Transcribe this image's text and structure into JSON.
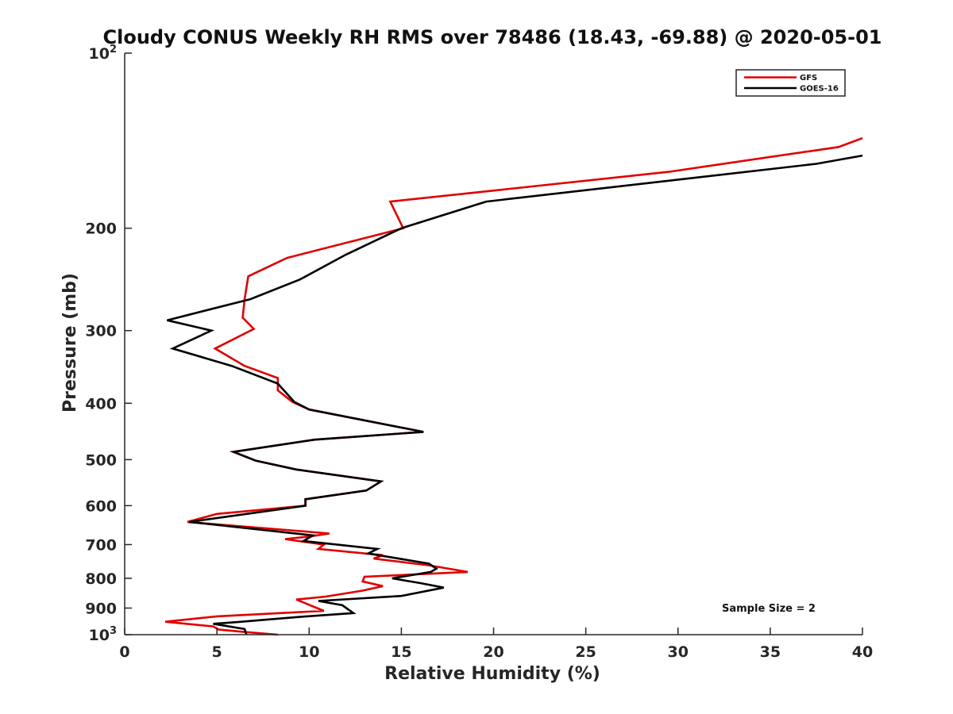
{
  "chart_data": {
    "type": "line",
    "title": "Cloudy CONUS Weekly RH RMS over 78486 (18.43, -69.88) @ 2020-05-01",
    "xlabel": "Relative Humidity (%)",
    "ylabel": "Pressure (mb)",
    "xlim": [
      0,
      40
    ],
    "ylim": [
      100,
      1000
    ],
    "y_scale": "log",
    "y_reversed": true,
    "grid": false,
    "legend_position": "top-right",
    "annotation": "Sample Size = 2",
    "x_ticks": [
      0,
      5,
      10,
      15,
      20,
      25,
      30,
      35,
      40
    ],
    "x_tick_labels": [
      "0",
      "5",
      "10",
      "15",
      "20",
      "25",
      "30",
      "35",
      "40"
    ],
    "y_ticks": [
      {
        "value": 100,
        "base": "10",
        "exp": "2"
      },
      {
        "value": 200,
        "label": "200"
      },
      {
        "value": 300,
        "label": "300"
      },
      {
        "value": 400,
        "label": "400"
      },
      {
        "value": 500,
        "label": "500"
      },
      {
        "value": 600,
        "label": "600"
      },
      {
        "value": 700,
        "label": "700"
      },
      {
        "value": 800,
        "label": "800"
      },
      {
        "value": 900,
        "label": "900"
      },
      {
        "value": 1000,
        "base": "10",
        "exp": "3"
      }
    ],
    "series": [
      {
        "name": "GFS",
        "color": "#e00000",
        "points": [
          [
            40.0,
            140
          ],
          [
            38.7,
            145
          ],
          [
            29.5,
            160
          ],
          [
            14.4,
            180
          ],
          [
            15.1,
            200
          ],
          [
            8.8,
            225
          ],
          [
            6.7,
            242
          ],
          [
            6.5,
            265
          ],
          [
            6.4,
            285
          ],
          [
            7.0,
            298
          ],
          [
            4.9,
            322
          ],
          [
            6.5,
            345
          ],
          [
            8.3,
            362
          ],
          [
            8.3,
            380
          ],
          [
            9.1,
            398
          ],
          [
            10.0,
            410
          ],
          [
            16.2,
            448
          ],
          [
            10.3,
            462
          ],
          [
            5.9,
            485
          ],
          [
            7.1,
            502
          ],
          [
            9.3,
            520
          ],
          [
            13.9,
            545
          ],
          [
            13.1,
            565
          ],
          [
            9.8,
            585
          ],
          [
            9.8,
            600
          ],
          [
            5.0,
            620
          ],
          [
            3.4,
            640
          ],
          [
            11.1,
            670
          ],
          [
            10.0,
            678
          ],
          [
            8.7,
            685
          ],
          [
            10.8,
            700
          ],
          [
            10.5,
            712
          ],
          [
            14.0,
            730
          ],
          [
            13.5,
            740
          ],
          [
            16.5,
            760
          ],
          [
            18.6,
            780
          ],
          [
            13.0,
            795
          ],
          [
            12.9,
            810
          ],
          [
            14.0,
            825
          ],
          [
            12.9,
            840
          ],
          [
            10.9,
            860
          ],
          [
            9.3,
            870
          ],
          [
            10.8,
            910
          ],
          [
            5.0,
            930
          ],
          [
            2.2,
            950
          ],
          [
            4.8,
            968
          ],
          [
            5.1,
            980
          ],
          [
            6.6,
            990
          ],
          [
            8.3,
            1000
          ]
        ]
      },
      {
        "name": "GOES-16",
        "color": "#000000",
        "points": [
          [
            40.0,
            150
          ],
          [
            37.5,
            155
          ],
          [
            19.6,
            180
          ],
          [
            15.0,
            200
          ],
          [
            12.0,
            222
          ],
          [
            9.5,
            245
          ],
          [
            6.8,
            265
          ],
          [
            2.3,
            288
          ],
          [
            4.7,
            300
          ],
          [
            2.6,
            322
          ],
          [
            5.8,
            345
          ],
          [
            8.3,
            370
          ],
          [
            9.2,
            398
          ],
          [
            10.0,
            410
          ],
          [
            16.2,
            448
          ],
          [
            10.3,
            462
          ],
          [
            5.9,
            485
          ],
          [
            7.1,
            502
          ],
          [
            9.3,
            520
          ],
          [
            13.9,
            545
          ],
          [
            13.1,
            565
          ],
          [
            9.8,
            585
          ],
          [
            9.8,
            600
          ],
          [
            3.5,
            640
          ],
          [
            10.2,
            675
          ],
          [
            9.7,
            690
          ],
          [
            13.7,
            712
          ],
          [
            13.2,
            725
          ],
          [
            16.5,
            755
          ],
          [
            16.9,
            770
          ],
          [
            16.6,
            780
          ],
          [
            14.5,
            800
          ],
          [
            16.0,
            815
          ],
          [
            17.3,
            830
          ],
          [
            15.0,
            858
          ],
          [
            10.5,
            875
          ],
          [
            11.8,
            890
          ],
          [
            12.4,
            918
          ],
          [
            9.5,
            932
          ],
          [
            6.0,
            952
          ],
          [
            4.8,
            958
          ],
          [
            6.5,
            978
          ],
          [
            6.6,
            1000
          ]
        ]
      }
    ]
  }
}
